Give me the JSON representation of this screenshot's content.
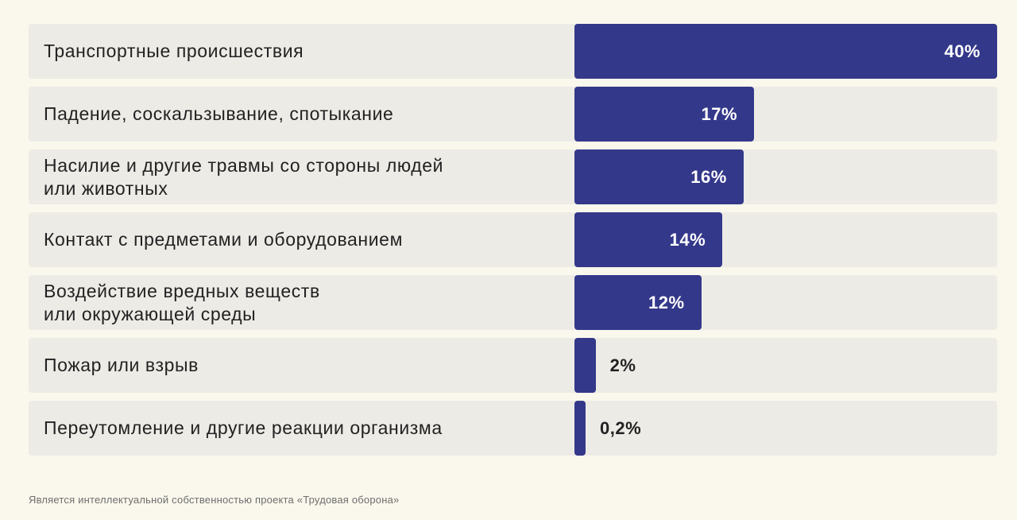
{
  "chart_data": {
    "type": "bar",
    "orientation": "horizontal",
    "categories": [
      "Транспортные происшествия",
      "Падение, соскальзывание, спотыкание",
      "Насилие и другие травмы со стороны людей\nили животных",
      "Контакт с предметами и оборудованием",
      "Воздействие вредных веществ\nили окружающей среды",
      "Пожар или взрыв",
      "Переутомление и другие реакции организма"
    ],
    "values": [
      40,
      17,
      16,
      14,
      12,
      2,
      0.2
    ],
    "value_labels": [
      "40%",
      "17%",
      "16%",
      "14%",
      "12%",
      "2%",
      "0,2%"
    ],
    "unit": "%",
    "xlim": [
      0,
      40
    ],
    "grid": false,
    "legend": "none",
    "colors": {
      "bar": "#34388a",
      "row_background": "#edebe6",
      "page_background": "#faf7ec"
    }
  },
  "footnote": "Является интеллектуальной собственностью проекта «Трудовая оборона»"
}
